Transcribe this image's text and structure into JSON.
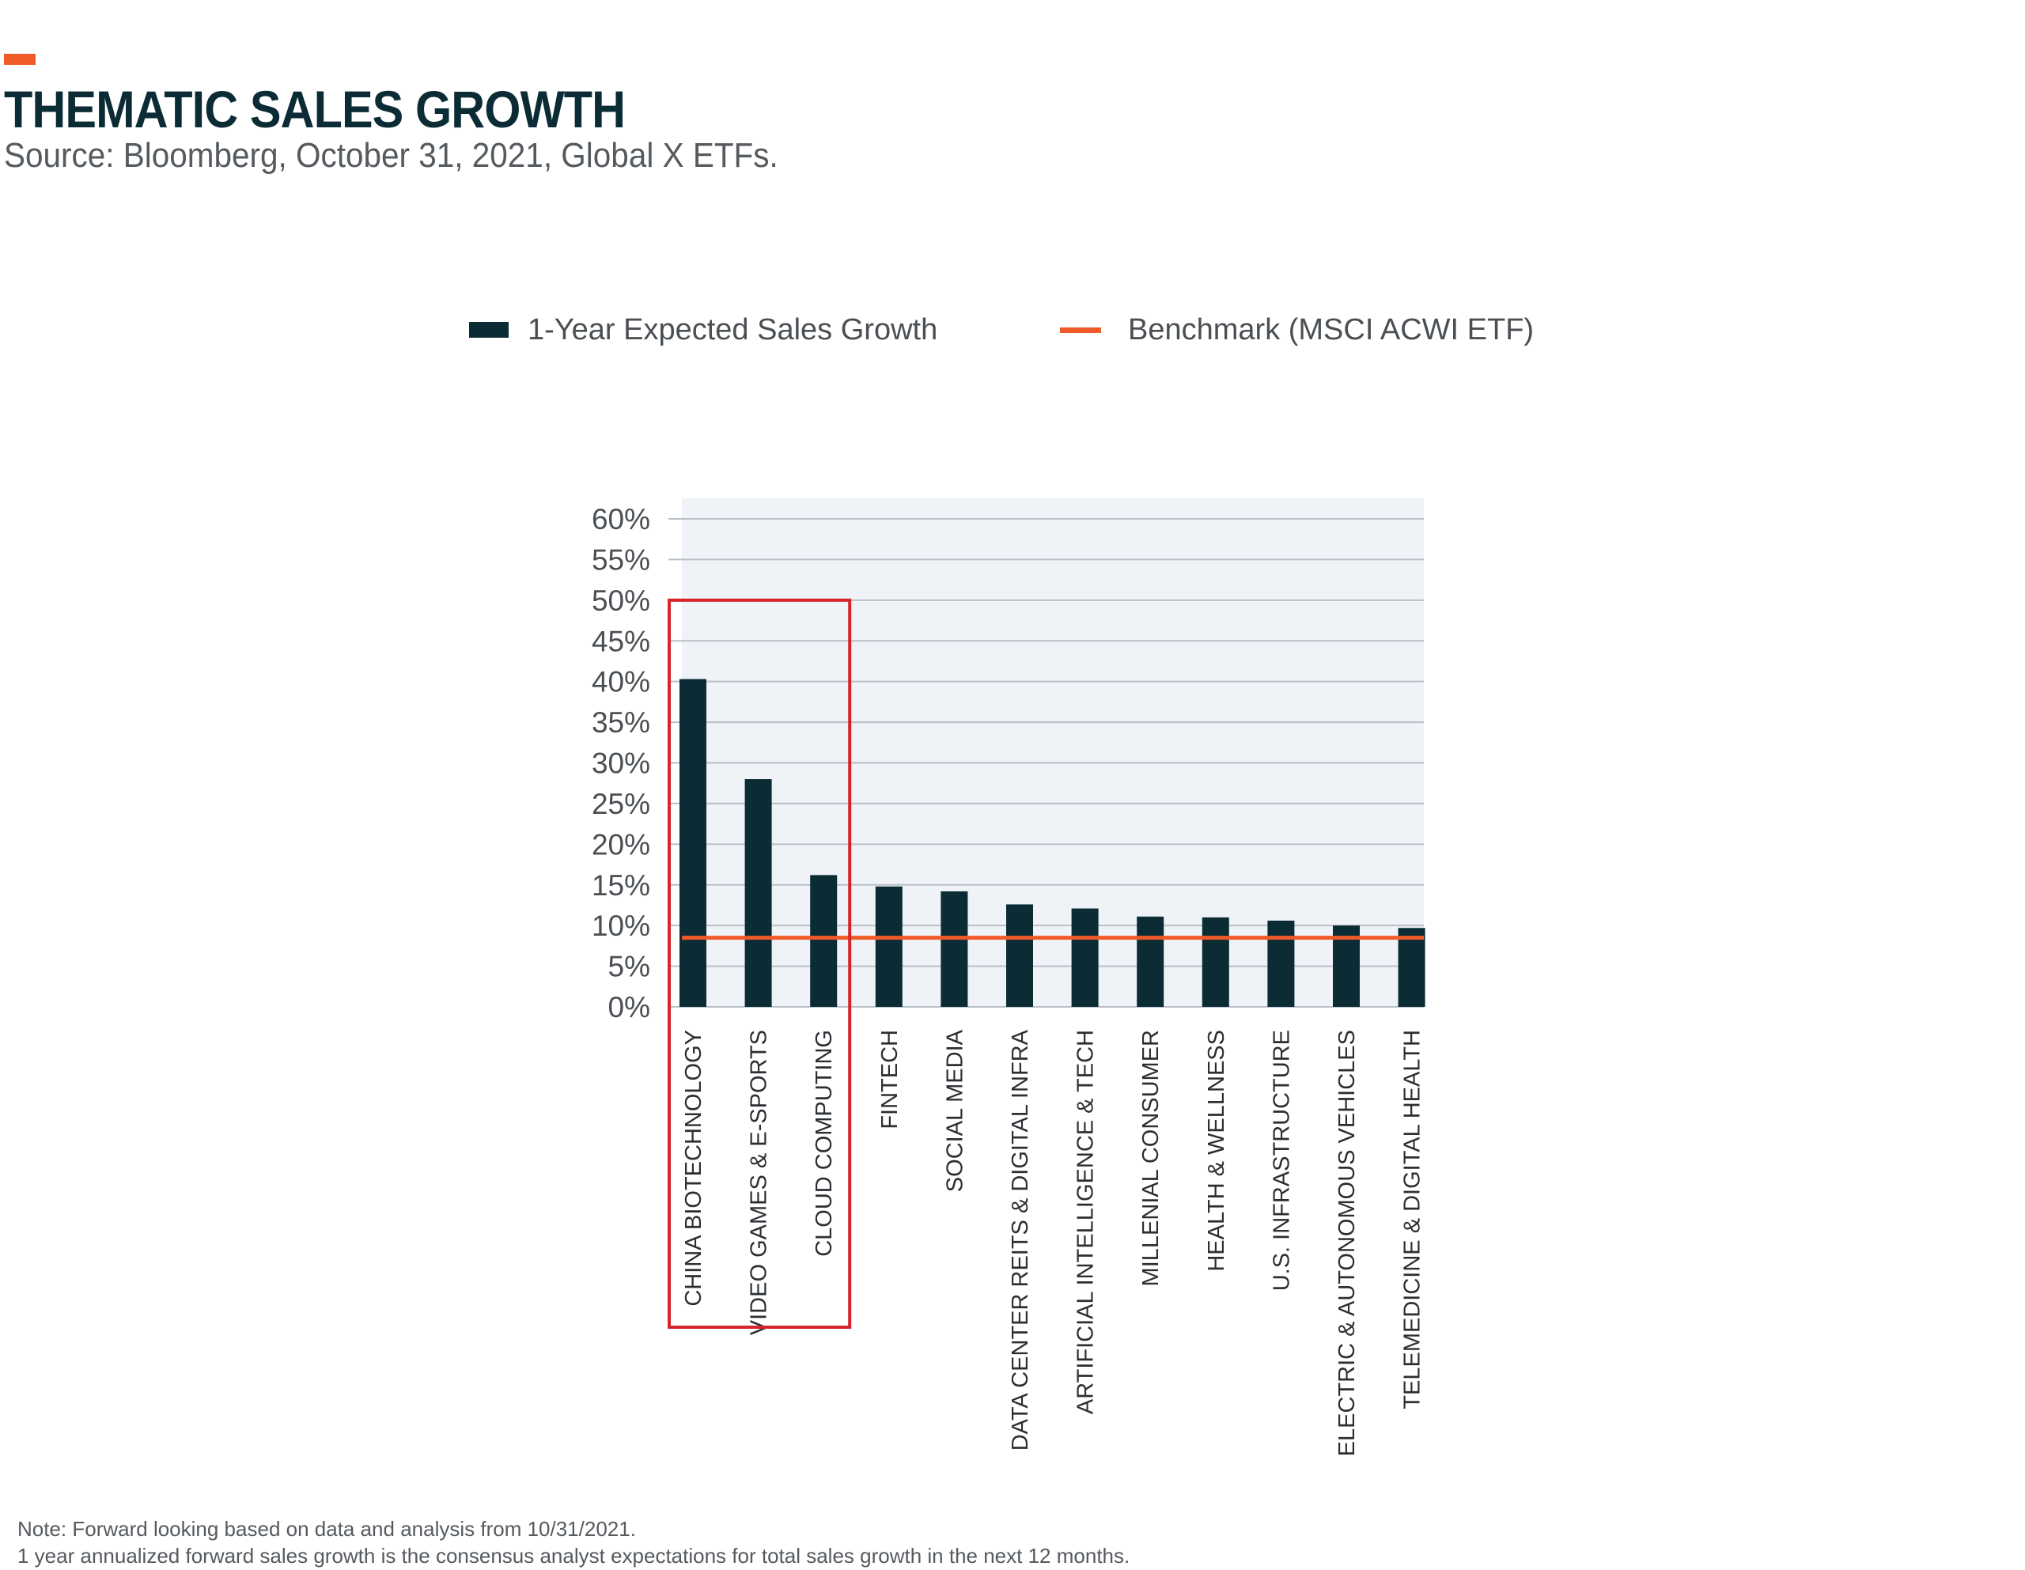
{
  "header": {
    "title": "THEMATIC SALES GROWTH",
    "source": "Source: Bloomberg, October 31, 2021, Global X ETFs."
  },
  "legend": {
    "bar_label": "1-Year Expected Sales Growth",
    "line_label": "Benchmark (MSCI ACWI ETF)"
  },
  "colors": {
    "bar": "#0b2b35",
    "benchmark": "#f05a28",
    "highlight_box": "#d6242c",
    "plot_bg": "#eff3f7",
    "accent": "#f05a28"
  },
  "chart_data": {
    "type": "bar",
    "title": "THEMATIC SALES GROWTH",
    "xlabel": "",
    "ylabel": "",
    "ylim": [
      0,
      60
    ],
    "yticks": [
      0,
      5,
      10,
      15,
      20,
      25,
      30,
      35,
      40,
      45,
      50,
      55,
      60
    ],
    "tick_suffix": "%",
    "categories": [
      "CHINA BIOTECHNOLOGY",
      "VIDEO GAMES & E-SPORTS",
      "CLOUD COMPUTING",
      "FINTECH",
      "SOCIAL MEDIA",
      "DATA CENTER REITS & DIGITAL INFRA",
      "ARTIFICIAL INTELLIGENCE & TECH",
      "MILLENIAL CONSUMER",
      "HEALTH & WELLNESS",
      "U.S. INFRASTRUCTURE",
      "ELECTRIC & AUTONOMOUS VEHICLES",
      "TELEMEDICINE & DIGITAL HEALTH"
    ],
    "series": [
      {
        "name": "1-Year Expected Sales Growth",
        "values": [
          40.3,
          28.0,
          16.2,
          14.8,
          14.2,
          12.6,
          12.1,
          11.1,
          11.0,
          10.6,
          10.0,
          9.7
        ]
      }
    ],
    "benchmark": {
      "name": "Benchmark (MSCI ACWI ETF)",
      "value": 8.5
    },
    "highlighted_categories": [
      "CHINA BIOTECHNOLOGY",
      "VIDEO GAMES & E-SPORTS",
      "CLOUD COMPUTING"
    ],
    "grid": true,
    "legend_position": "top"
  },
  "notes": [
    "Note: Forward looking based on data and analysis from 10/31/2021.",
    "1 year annualized forward sales growth is the consensus analyst expectations for total sales growth in the next 12 months."
  ]
}
